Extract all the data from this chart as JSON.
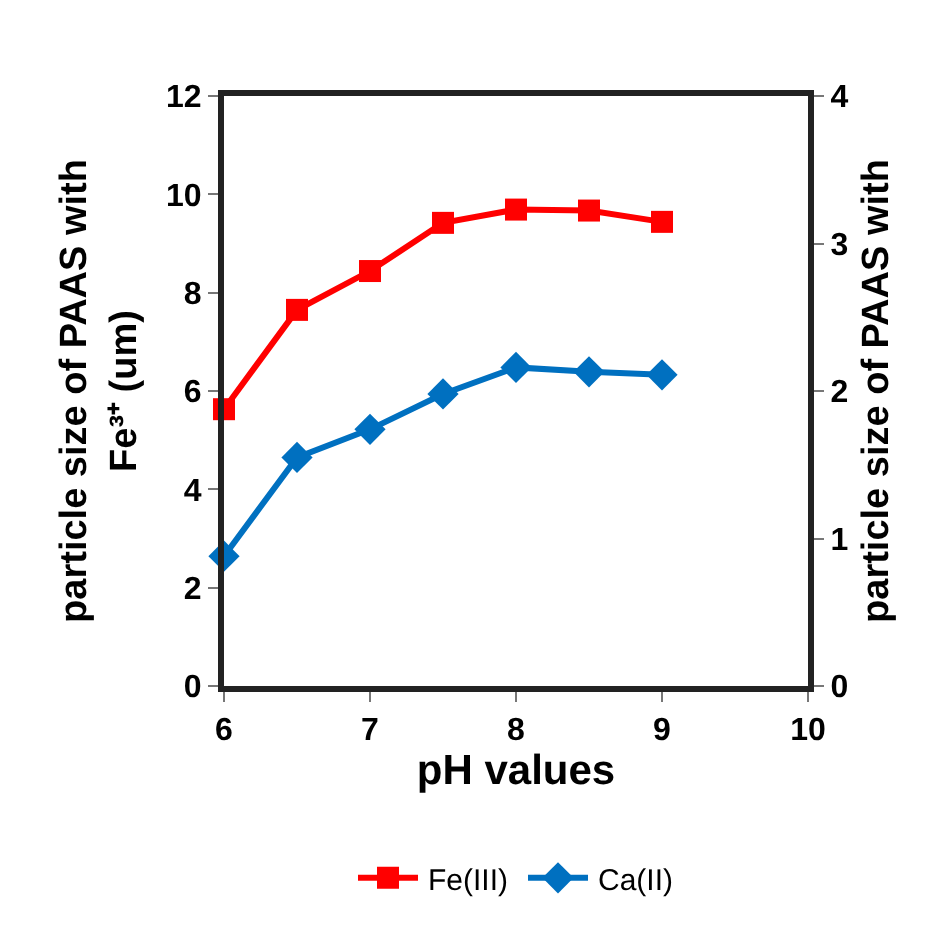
{
  "chart_data": {
    "type": "line",
    "xlabel": "pH values",
    "ylabel": "particle size of PAAS with Fe³⁺ (um)",
    "y2label": "particle size of PAAS with",
    "x": [
      6,
      6.5,
      7,
      7.5,
      8,
      8.5,
      9
    ],
    "series": [
      {
        "name": "Fe(III)",
        "color": "#ff0000",
        "marker": "square",
        "values": [
          5.63,
          7.65,
          8.44,
          9.42,
          9.69,
          9.67,
          9.44
        ]
      },
      {
        "name": "Ca(II)",
        "color": "#0070c0",
        "marker": "diamond",
        "axis": "y2",
        "values": [
          0.88,
          1.55,
          1.74,
          1.98,
          2.16,
          2.13,
          2.11
        ]
      }
    ],
    "xlim": [
      6,
      10
    ],
    "xticks": [
      6,
      7,
      8,
      9,
      10
    ],
    "ylim": [
      0,
      12
    ],
    "yticks": [
      0,
      2,
      4,
      6,
      8,
      10,
      12
    ],
    "y2lim": [
      0,
      4
    ],
    "y2ticks": [
      0,
      1,
      2,
      3,
      4
    ],
    "grid": false,
    "legend": "bottom",
    "line_style": "solid"
  }
}
